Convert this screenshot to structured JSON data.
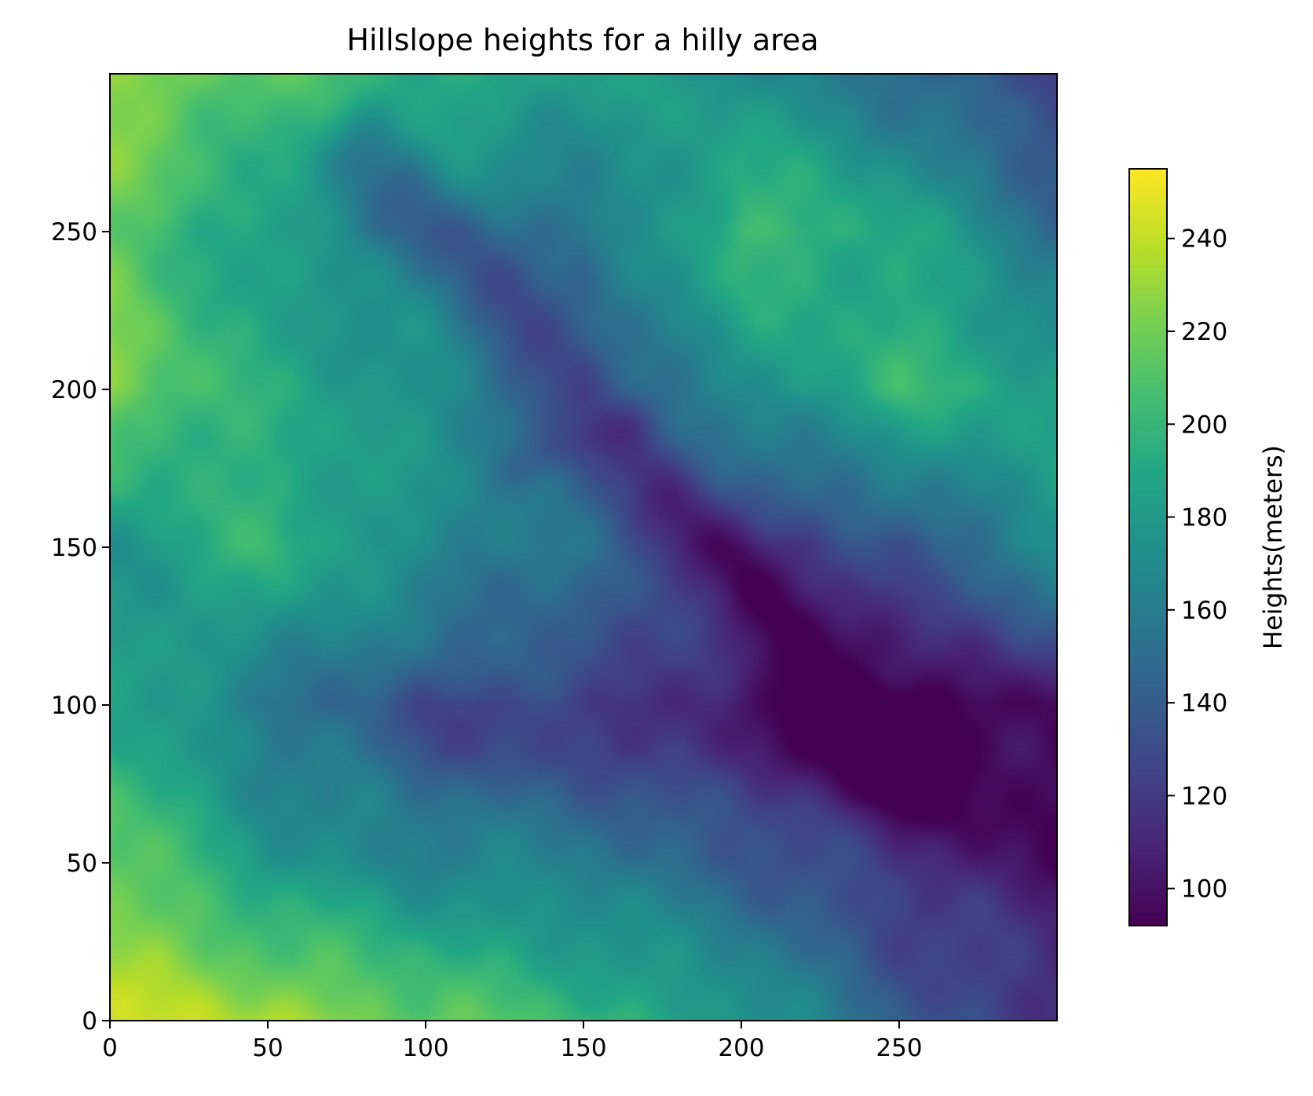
{
  "chart_data": {
    "type": "heatmap",
    "title": "Hillslope heights for a hilly area",
    "xlabel": "",
    "ylabel": "",
    "xlim": [
      0,
      299
    ],
    "ylim": [
      0,
      299
    ],
    "x_ticks": [
      0,
      50,
      100,
      150,
      200,
      250
    ],
    "y_ticks": [
      0,
      50,
      100,
      150,
      200,
      250
    ],
    "colorbar": {
      "label": "Heights(meters)",
      "range": [
        92,
        255
      ],
      "ticks": [
        100,
        120,
        140,
        160,
        180,
        200,
        220,
        240
      ],
      "colormap": "viridis",
      "placement": "right"
    },
    "grid_shape": [
      300,
      300
    ],
    "height_samples_description_free": true,
    "sampled_heights": {
      "x": [
        0,
        50,
        100,
        150,
        200,
        250,
        299
      ],
      "y": [
        0,
        50,
        100,
        150,
        200,
        250,
        299
      ],
      "rows_by_y": [
        [
          240,
          235,
          215,
          200,
          180,
          140,
          118
        ],
        [
          218,
          178,
          165,
          160,
          140,
          118,
          105
        ],
        [
          190,
          155,
          140,
          130,
          115,
          100,
          96
        ],
        [
          175,
          200,
          170,
          150,
          120,
          135,
          175
        ],
        [
          225,
          190,
          175,
          145,
          170,
          200,
          185
        ],
        [
          215,
          180,
          165,
          150,
          205,
          190,
          150
        ],
        [
          228,
          210,
          195,
          185,
          175,
          150,
          125
        ]
      ]
    }
  }
}
